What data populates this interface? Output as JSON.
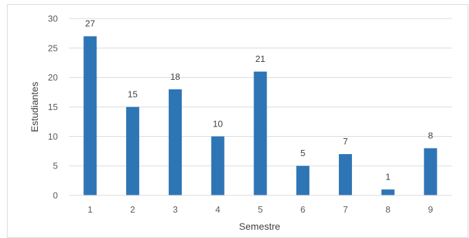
{
  "chart_data": {
    "type": "bar",
    "categories": [
      "1",
      "2",
      "3",
      "4",
      "5",
      "6",
      "7",
      "8",
      "9"
    ],
    "values": [
      27,
      15,
      18,
      10,
      21,
      5,
      7,
      1,
      8
    ],
    "data_labels": [
      "27",
      "15",
      "18",
      "10",
      "21",
      "5",
      "7",
      "1",
      "8"
    ],
    "xlabel": "Semestre",
    "ylabel": "Estudiantes",
    "ylim": [
      0,
      30
    ],
    "yticks": [
      "0",
      "5",
      "10",
      "15",
      "20",
      "25",
      "30"
    ],
    "grid": true,
    "legend": "none",
    "bar_color": "#2e75b6",
    "grid_color": "#d9d9d9"
  }
}
